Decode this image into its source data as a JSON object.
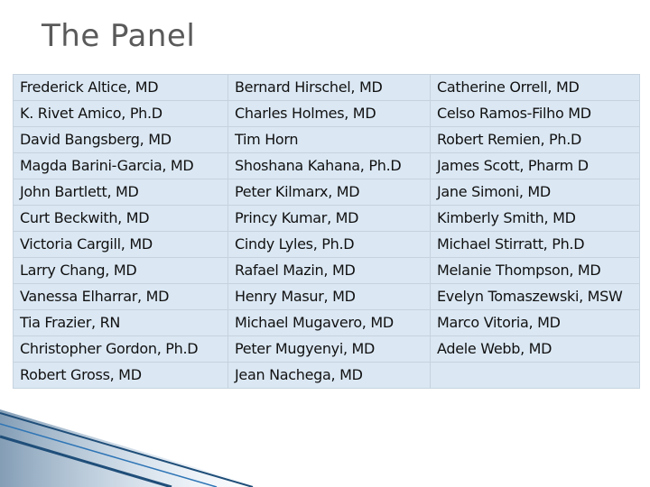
{
  "title": "The Panel",
  "table": {
    "rows": [
      [
        "Frederick Altice, MD",
        "Bernard Hirschel, MD",
        "Catherine Orrell, MD"
      ],
      [
        "K. Rivet Amico, Ph.D",
        "Charles Holmes, MD",
        "Celso Ramos-Filho MD"
      ],
      [
        "David Bangsberg, MD",
        "Tim Horn",
        "Robert Remien, Ph.D"
      ],
      [
        "Magda Barini-Garcia, MD",
        "Shoshana Kahana, Ph.D",
        "James Scott, Pharm D"
      ],
      [
        "John Bartlett, MD",
        "Peter Kilmarx, MD",
        "Jane Simoni, MD"
      ],
      [
        "Curt Beckwith, MD",
        "Princy Kumar, MD",
        "Kimberly Smith, MD"
      ],
      [
        "Victoria Cargill, MD",
        "Cindy Lyles, Ph.D",
        "Michael Stirratt, Ph.D"
      ],
      [
        "Larry Chang, MD",
        "Rafael Mazin, MD",
        "Melanie Thompson, MD"
      ],
      [
        "Vanessa Elharrar, MD",
        "Henry Masur, MD",
        "Evelyn Tomaszewski, MSW"
      ],
      [
        "Tia Frazier, RN",
        "Michael Mugavero, MD",
        "Marco Vitoria, MD"
      ],
      [
        "Christopher Gordon, Ph.D",
        "Peter Mugyenyi, MD",
        "Adele Webb, MD"
      ],
      [
        "Robert Gross, MD",
        "Jean Nachega, MD"
      ]
    ]
  }
}
